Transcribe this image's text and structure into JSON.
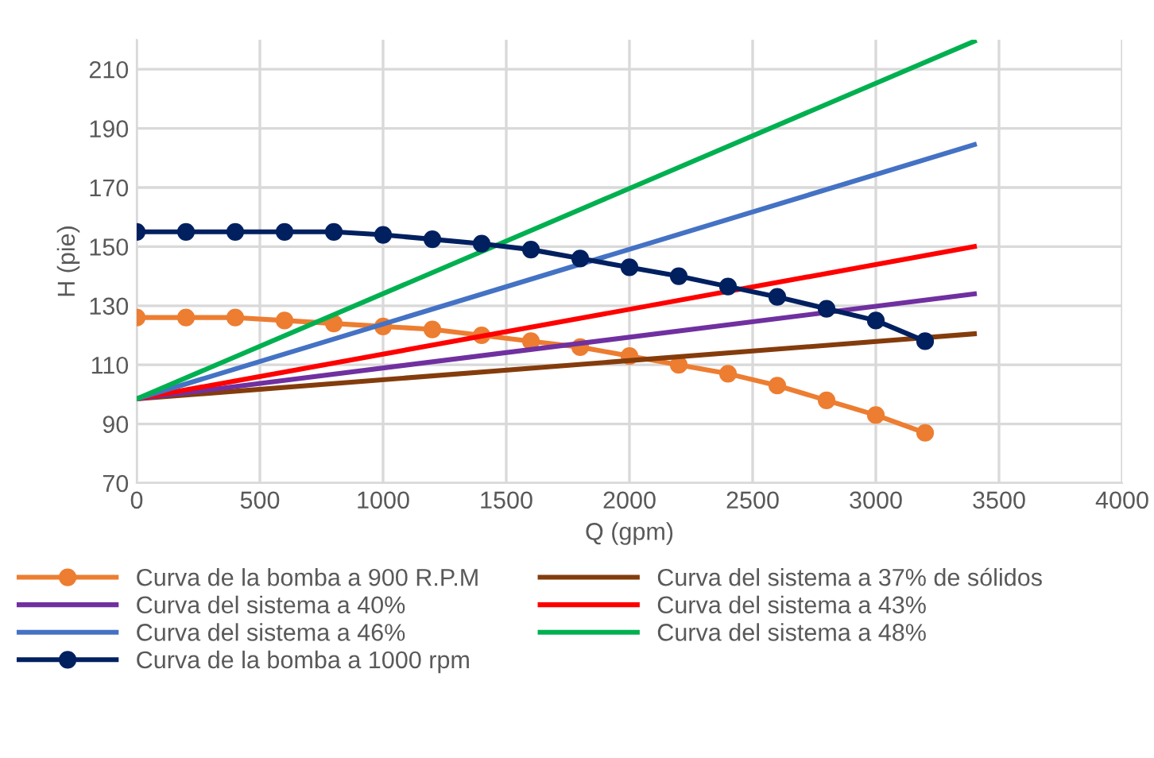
{
  "chart_data": {
    "type": "line",
    "xlabel": "Q (gpm)",
    "ylabel": "H (pie)",
    "xlim": [
      0,
      4000
    ],
    "ylim": [
      70,
      220
    ],
    "xticks": [
      0,
      500,
      1000,
      1500,
      2000,
      2500,
      3000,
      3500,
      4000
    ],
    "yticks": [
      70,
      90,
      110,
      130,
      150,
      170,
      190,
      210
    ],
    "grid": true,
    "legend": "bottom",
    "series": [
      {
        "name": "Curva de la bomba a 900 R.P.M",
        "color": "#ed7d31",
        "marker": "circle",
        "x": [
          0,
          200,
          400,
          600,
          800,
          1000,
          1200,
          1400,
          1600,
          1800,
          2000,
          2200,
          2400,
          2600,
          2800,
          3000,
          3200
        ],
        "values": [
          126,
          126,
          126,
          125,
          124,
          123,
          122,
          120,
          118,
          116,
          113,
          110,
          107,
          103,
          98,
          93,
          87
        ]
      },
      {
        "name": "Curva del sistema a 37% de sólidos",
        "color": "#843c0c",
        "x": [
          0,
          3400
        ],
        "values": [
          98.5,
          120.5
        ]
      },
      {
        "name": "Curva del sistema a 40%",
        "color": "#7030a0",
        "x": [
          0,
          3400
        ],
        "values": [
          98.5,
          134
        ]
      },
      {
        "name": "Curva del sistema a 43%",
        "color": "#ff0000",
        "x": [
          0,
          3400
        ],
        "values": [
          98.5,
          150
        ]
      },
      {
        "name": "Curva del sistema a 46%",
        "color": "#4472c4",
        "x": [
          0,
          3400
        ],
        "values": [
          98.5,
          184.5
        ]
      },
      {
        "name": "Curva del sistema a 48%",
        "color": "#00b050",
        "x": [
          0,
          3400
        ],
        "values": [
          98.5,
          219.5
        ]
      },
      {
        "name": "Curva de la bomba a 1000 rpm",
        "color": "#002060",
        "marker": "circle",
        "x": [
          0,
          200,
          400,
          600,
          800,
          1000,
          1200,
          1400,
          1600,
          1800,
          2000,
          2200,
          2400,
          2600,
          2800,
          3000,
          3200
        ],
        "values": [
          155,
          155,
          155,
          155,
          155,
          154,
          152.5,
          151,
          149,
          146,
          143,
          140,
          136.5,
          133,
          129,
          125,
          118
        ]
      }
    ]
  }
}
